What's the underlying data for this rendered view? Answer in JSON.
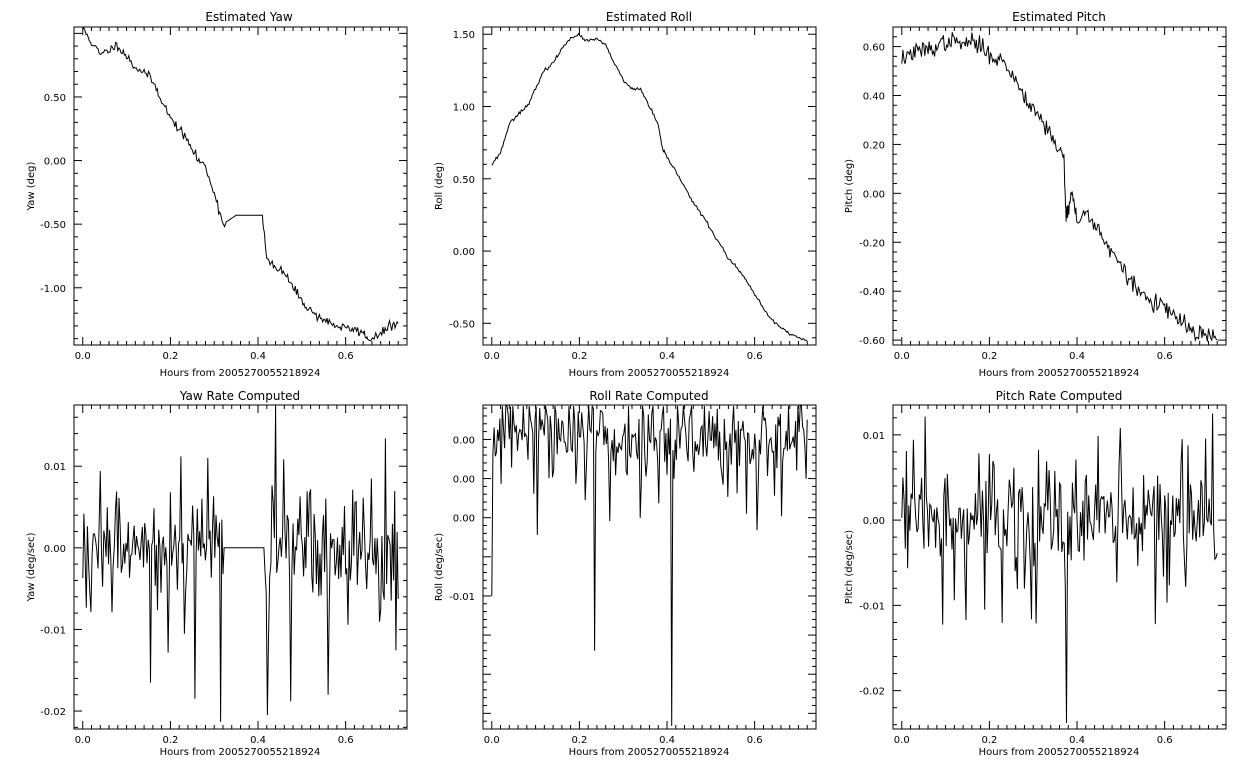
{
  "chart_data": [
    {
      "type": "line",
      "title": "Estimated Yaw",
      "xlabel": "Hours from 2005270055218924",
      "ylabel": "Yaw (deg)",
      "xlim": [
        -0.02,
        0.74
      ],
      "ylim": [
        -1.45,
        1.05
      ],
      "xticks": [
        "0.0",
        "0.2",
        "0.4",
        "0.6"
      ],
      "yticks": [
        "0.50",
        "0.00",
        "-0.50",
        "-1.00"
      ],
      "x": [
        0.0,
        0.02,
        0.04,
        0.06,
        0.08,
        0.1,
        0.12,
        0.14,
        0.16,
        0.18,
        0.2,
        0.22,
        0.24,
        0.26,
        0.28,
        0.3,
        0.32,
        0.35,
        0.38,
        0.41,
        0.42,
        0.44,
        0.46,
        0.48,
        0.5,
        0.52,
        0.54,
        0.56,
        0.58,
        0.6,
        0.62,
        0.64,
        0.65,
        0.68,
        0.7,
        0.72
      ],
      "y": [
        1.04,
        0.93,
        0.83,
        0.87,
        0.91,
        0.82,
        0.73,
        0.7,
        0.62,
        0.48,
        0.33,
        0.25,
        0.15,
        0.02,
        -0.05,
        -0.25,
        -0.5,
        -0.43,
        -0.43,
        -0.43,
        -0.78,
        -0.85,
        -0.88,
        -1.0,
        -1.1,
        -1.18,
        -1.23,
        -1.27,
        -1.3,
        -1.32,
        -1.33,
        -1.35,
        -1.4,
        -1.37,
        -1.3,
        -1.28
      ],
      "noise": 0.018,
      "seed": 11
    },
    {
      "type": "line",
      "title": "Estimated Roll",
      "xlabel": "Hours from 2005270055218924",
      "ylabel": "Roll (deg)",
      "xlim": [
        -0.02,
        0.74
      ],
      "ylim": [
        -0.65,
        1.55
      ],
      "xticks": [
        "0.0",
        "0.2",
        "0.4",
        "0.6"
      ],
      "yticks": [
        "1.50",
        "1.00",
        "0.50",
        "0.00",
        "-0.50"
      ],
      "x": [
        0.0,
        0.02,
        0.04,
        0.06,
        0.08,
        0.1,
        0.12,
        0.14,
        0.16,
        0.18,
        0.2,
        0.22,
        0.24,
        0.26,
        0.28,
        0.3,
        0.32,
        0.34,
        0.36,
        0.38,
        0.39,
        0.4,
        0.42,
        0.44,
        0.46,
        0.48,
        0.5,
        0.52,
        0.54,
        0.56,
        0.58,
        0.6,
        0.62,
        0.64,
        0.66,
        0.68,
        0.7,
        0.72
      ],
      "y": [
        0.6,
        0.68,
        0.88,
        0.95,
        1.0,
        1.12,
        1.25,
        1.3,
        1.4,
        1.48,
        1.49,
        1.45,
        1.47,
        1.42,
        1.3,
        1.18,
        1.12,
        1.12,
        1.0,
        0.87,
        0.7,
        0.65,
        0.55,
        0.45,
        0.33,
        0.25,
        0.15,
        0.05,
        -0.05,
        -0.12,
        -0.2,
        -0.3,
        -0.4,
        -0.48,
        -0.53,
        -0.57,
        -0.6,
        -0.62
      ],
      "noise": 0.006,
      "seed": 23
    },
    {
      "type": "line",
      "title": "Estimated Pitch",
      "xlabel": "Hours from 2005270055218924",
      "ylabel": "Pitch (deg)",
      "xlim": [
        -0.02,
        0.74
      ],
      "ylim": [
        -0.62,
        0.68
      ],
      "xticks": [
        "0.0",
        "0.2",
        "0.4",
        "0.6"
      ],
      "yticks": [
        "0.60",
        "0.40",
        "0.20",
        "0.00",
        "-0.20",
        "-0.40",
        "-0.60"
      ],
      "x": [
        0.0,
        0.02,
        0.04,
        0.06,
        0.08,
        0.1,
        0.12,
        0.14,
        0.16,
        0.18,
        0.2,
        0.22,
        0.24,
        0.26,
        0.28,
        0.3,
        0.32,
        0.34,
        0.36,
        0.37,
        0.375,
        0.38,
        0.39,
        0.4,
        0.42,
        0.44,
        0.46,
        0.48,
        0.5,
        0.52,
        0.54,
        0.56,
        0.58,
        0.6,
        0.62,
        0.64,
        0.66,
        0.68,
        0.7,
        0.72
      ],
      "y": [
        0.55,
        0.57,
        0.58,
        0.59,
        0.6,
        0.62,
        0.62,
        0.61,
        0.62,
        0.6,
        0.57,
        0.55,
        0.52,
        0.46,
        0.4,
        0.35,
        0.3,
        0.24,
        0.18,
        0.14,
        -0.1,
        -0.05,
        0.0,
        -0.12,
        -0.08,
        -0.12,
        -0.18,
        -0.25,
        -0.3,
        -0.35,
        -0.4,
        -0.43,
        -0.45,
        -0.47,
        -0.5,
        -0.53,
        -0.56,
        -0.58,
        -0.58,
        -0.6
      ],
      "noise": 0.018,
      "seed": 37
    },
    {
      "type": "line",
      "title": "Yaw Rate Computed",
      "xlabel": "Hours from 2005270055218924",
      "ylabel": "Yaw (deg/sec)",
      "xlim": [
        -0.02,
        0.74
      ],
      "ylim": [
        -0.0222,
        0.0175
      ],
      "xticks": [
        "0.0",
        "0.2",
        "0.4",
        "0.6"
      ],
      "yticks": [
        "0.01",
        "0.00",
        "-0.01",
        "-0.02"
      ],
      "x_start": 0.0,
      "x_end": 0.72,
      "n_points": 270,
      "amplitude": 0.0045,
      "flat_range": [
        0.32,
        0.415
      ],
      "spikes": [
        [
          0.155,
          -0.0165
        ],
        [
          0.225,
          0.0112
        ],
        [
          0.255,
          -0.0185
        ],
        [
          0.285,
          0.011
        ],
        [
          0.315,
          -0.0213
        ],
        [
          0.42,
          -0.0205
        ],
        [
          0.44,
          0.0173
        ],
        [
          0.475,
          -0.0188
        ],
        [
          0.56,
          -0.018
        ],
        [
          0.66,
          0.0085
        ]
      ],
      "seed": 101
    },
    {
      "type": "line",
      "title": "Roll Rate Computed",
      "xlabel": "Hours from 2005270055218924",
      "ylabel": "Roll (deg/sec)",
      "xlim": [
        -0.02,
        0.74
      ],
      "ylim": [
        -0.0185,
        0.0022
      ],
      "xticks": [
        "0.0",
        "0.2",
        "0.4",
        "0.6"
      ],
      "yticks": [
        "0.00",
        "0.00",
        "0.00",
        "-0.01"
      ],
      "x_start": 0.0,
      "x_end": 0.72,
      "n_points": 270,
      "amplitude": 0.0022,
      "start_value": -0.01,
      "spikes": [
        [
          0.235,
          -0.0135
        ],
        [
          0.41,
          -0.0183
        ],
        [
          0.1,
          0.0021
        ],
        [
          0.25,
          0.0018
        ],
        [
          0.62,
          0.0012
        ]
      ],
      "seed": 202
    },
    {
      "type": "line",
      "title": "Pitch Rate Computed",
      "xlabel": "Hours from 2005270055218924",
      "ylabel": "Pitch (deg/sec)",
      "xlim": [
        -0.02,
        0.74
      ],
      "ylim": [
        -0.0245,
        0.0135
      ],
      "xticks": [
        "0.0",
        "0.2",
        "0.4",
        "0.6"
      ],
      "yticks": [
        "0.01",
        "0.00",
        "-0.01",
        "-0.02"
      ],
      "x_start": 0.0,
      "x_end": 0.72,
      "n_points": 270,
      "amplitude": 0.0045,
      "spikes": [
        [
          0.375,
          -0.0238
        ],
        [
          0.71,
          0.0125
        ],
        [
          0.58,
          -0.0122
        ],
        [
          0.19,
          -0.0105
        ],
        [
          0.64,
          0.0095
        ]
      ],
      "seed": 303
    }
  ]
}
